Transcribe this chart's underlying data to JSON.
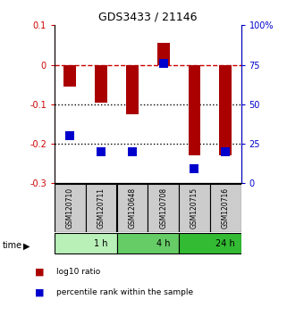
{
  "title": "GDS3433 / 21146",
  "samples": [
    "GSM120710",
    "GSM120711",
    "GSM120648",
    "GSM120708",
    "GSM120715",
    "GSM120716"
  ],
  "log10_ratio": [
    -0.055,
    -0.095,
    -0.125,
    0.055,
    -0.23,
    -0.23
  ],
  "percentile_rank": [
    30,
    20,
    20,
    76,
    9,
    20
  ],
  "ylim_left": [
    -0.3,
    0.1
  ],
  "ylim_right": [
    0,
    100
  ],
  "yticks_left": [
    0.1,
    0.0,
    -0.1,
    -0.2,
    -0.3
  ],
  "yticks_right": [
    100,
    75,
    50,
    25,
    0
  ],
  "ytick_labels_left": [
    "0.1",
    "0",
    "-0.1",
    "-0.2",
    "-0.3"
  ],
  "ytick_labels_right": [
    "100%",
    "75",
    "50",
    "25",
    "0"
  ],
  "time_groups": [
    {
      "label": "1 h",
      "start": 0,
      "end": 2,
      "color": "#b8f0b8"
    },
    {
      "label": "4 h",
      "start": 2,
      "end": 4,
      "color": "#66cc66"
    },
    {
      "label": "24 h",
      "start": 4,
      "end": 6,
      "color": "#33bb33"
    }
  ],
  "bar_color": "#aa0000",
  "square_color": "#0000cc",
  "ref_line_color": "#cc0000",
  "dotted_line_color": "#000000",
  "dotted_lines": [
    -0.1,
    -0.2
  ],
  "bar_width": 0.4,
  "square_size": 55,
  "legend_items": [
    {
      "label": "log10 ratio",
      "color": "#aa0000"
    },
    {
      "label": "percentile rank within the sample",
      "color": "#0000cc"
    }
  ],
  "sample_box_color": "#cccccc",
  "sample_box_text_color": "#000000",
  "time_label": "time"
}
